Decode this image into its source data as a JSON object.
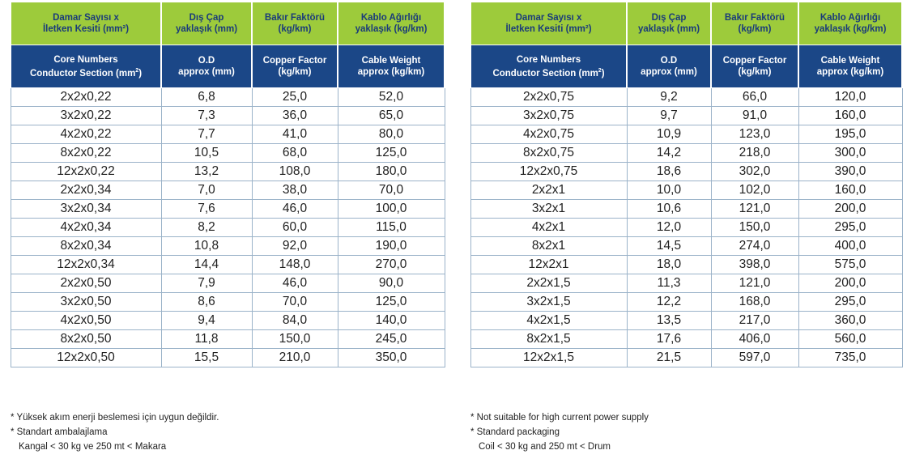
{
  "headers_tr": [
    [
      "Damar Sayısı x",
      "İletken Kesiti (mm²)"
    ],
    [
      "Dış Çap",
      "yaklaşık (mm)"
    ],
    [
      "Bakır Faktörü",
      "(kg/km)"
    ],
    [
      "Kablo Ağırlığı",
      "yaklaşık (kg/km)"
    ]
  ],
  "headers_en": [
    [
      "Core Numbers",
      "Conductor Section (mm",
      "2",
      ")"
    ],
    [
      "O.D",
      "approx (mm)",
      "",
      ""
    ],
    [
      "Copper Factor",
      "(kg/km)",
      "",
      ""
    ],
    [
      "Cable Weight",
      "approx (kg/km)",
      "",
      ""
    ]
  ],
  "left_rows": [
    [
      "2x2x0,22",
      "6,8",
      "25,0",
      "52,0"
    ],
    [
      "3x2x0,22",
      "7,3",
      "36,0",
      "65,0"
    ],
    [
      "4x2x0,22",
      "7,7",
      "41,0",
      "80,0"
    ],
    [
      "8x2x0,22",
      "10,5",
      "68,0",
      "125,0"
    ],
    [
      "12x2x0,22",
      "13,2",
      "108,0",
      "180,0"
    ],
    [
      "2x2x0,34",
      "7,0",
      "38,0",
      "70,0"
    ],
    [
      "3x2x0,34",
      "7,6",
      "46,0",
      "100,0"
    ],
    [
      "4x2x0,34",
      "8,2",
      "60,0",
      "115,0"
    ],
    [
      "8x2x0,34",
      "10,8",
      "92,0",
      "190,0"
    ],
    [
      "12x2x0,34",
      "14,4",
      "148,0",
      "270,0"
    ],
    [
      "2x2x0,50",
      "7,9",
      "46,0",
      "90,0"
    ],
    [
      "3x2x0,50",
      "8,6",
      "70,0",
      "125,0"
    ],
    [
      "4x2x0,50",
      "9,4",
      "84,0",
      "140,0"
    ],
    [
      "8x2x0,50",
      "11,8",
      "150,0",
      "245,0"
    ],
    [
      "12x2x0,50",
      "15,5",
      "210,0",
      "350,0"
    ]
  ],
  "right_rows": [
    [
      "2x2x0,75",
      "9,2",
      "66,0",
      "120,0"
    ],
    [
      "3x2x0,75",
      "9,7",
      "91,0",
      "160,0"
    ],
    [
      "4x2x0,75",
      "10,9",
      "123,0",
      "195,0"
    ],
    [
      "8x2x0,75",
      "14,2",
      "218,0",
      "300,0"
    ],
    [
      "12x2x0,75",
      "18,6",
      "302,0",
      "390,0"
    ],
    [
      "2x2x1",
      "10,0",
      "102,0",
      "160,0"
    ],
    [
      "3x2x1",
      "10,6",
      "121,0",
      "200,0"
    ],
    [
      "4x2x1",
      "12,0",
      "150,0",
      "295,0"
    ],
    [
      "8x2x1",
      "14,5",
      "274,0",
      "400,0"
    ],
    [
      "12x2x1",
      "18,0",
      "398,0",
      "575,0"
    ],
    [
      "2x2x1,5",
      "11,3",
      "121,0",
      "200,0"
    ],
    [
      "3x2x1,5",
      "12,2",
      "168,0",
      "295,0"
    ],
    [
      "4x2x1,5",
      "13,5",
      "217,0",
      "360,0"
    ],
    [
      "8x2x1,5",
      "17,6",
      "406,0",
      "560,0"
    ],
    [
      "12x2x1,5",
      "21,5",
      "597,0",
      "735,0"
    ]
  ],
  "notes_tr": [
    "* Yüksek akım enerji beslemesi için uygun değildir.",
    "* Standart ambalajlama",
    "Kangal < 30 kg ve 250 mt < Makara"
  ],
  "notes_en": [
    "* Not suitable for high current power supply",
    "* Standard packaging",
    "Coil < 30 kg and 250 mt < Drum"
  ],
  "colors": {
    "header_tr_bg": "#9dcb3b",
    "header_tr_text": "#1a3b7a",
    "header_en_bg": "#1b4787",
    "header_en_text": "#ffffff",
    "grid": "#9bb3c9"
  }
}
